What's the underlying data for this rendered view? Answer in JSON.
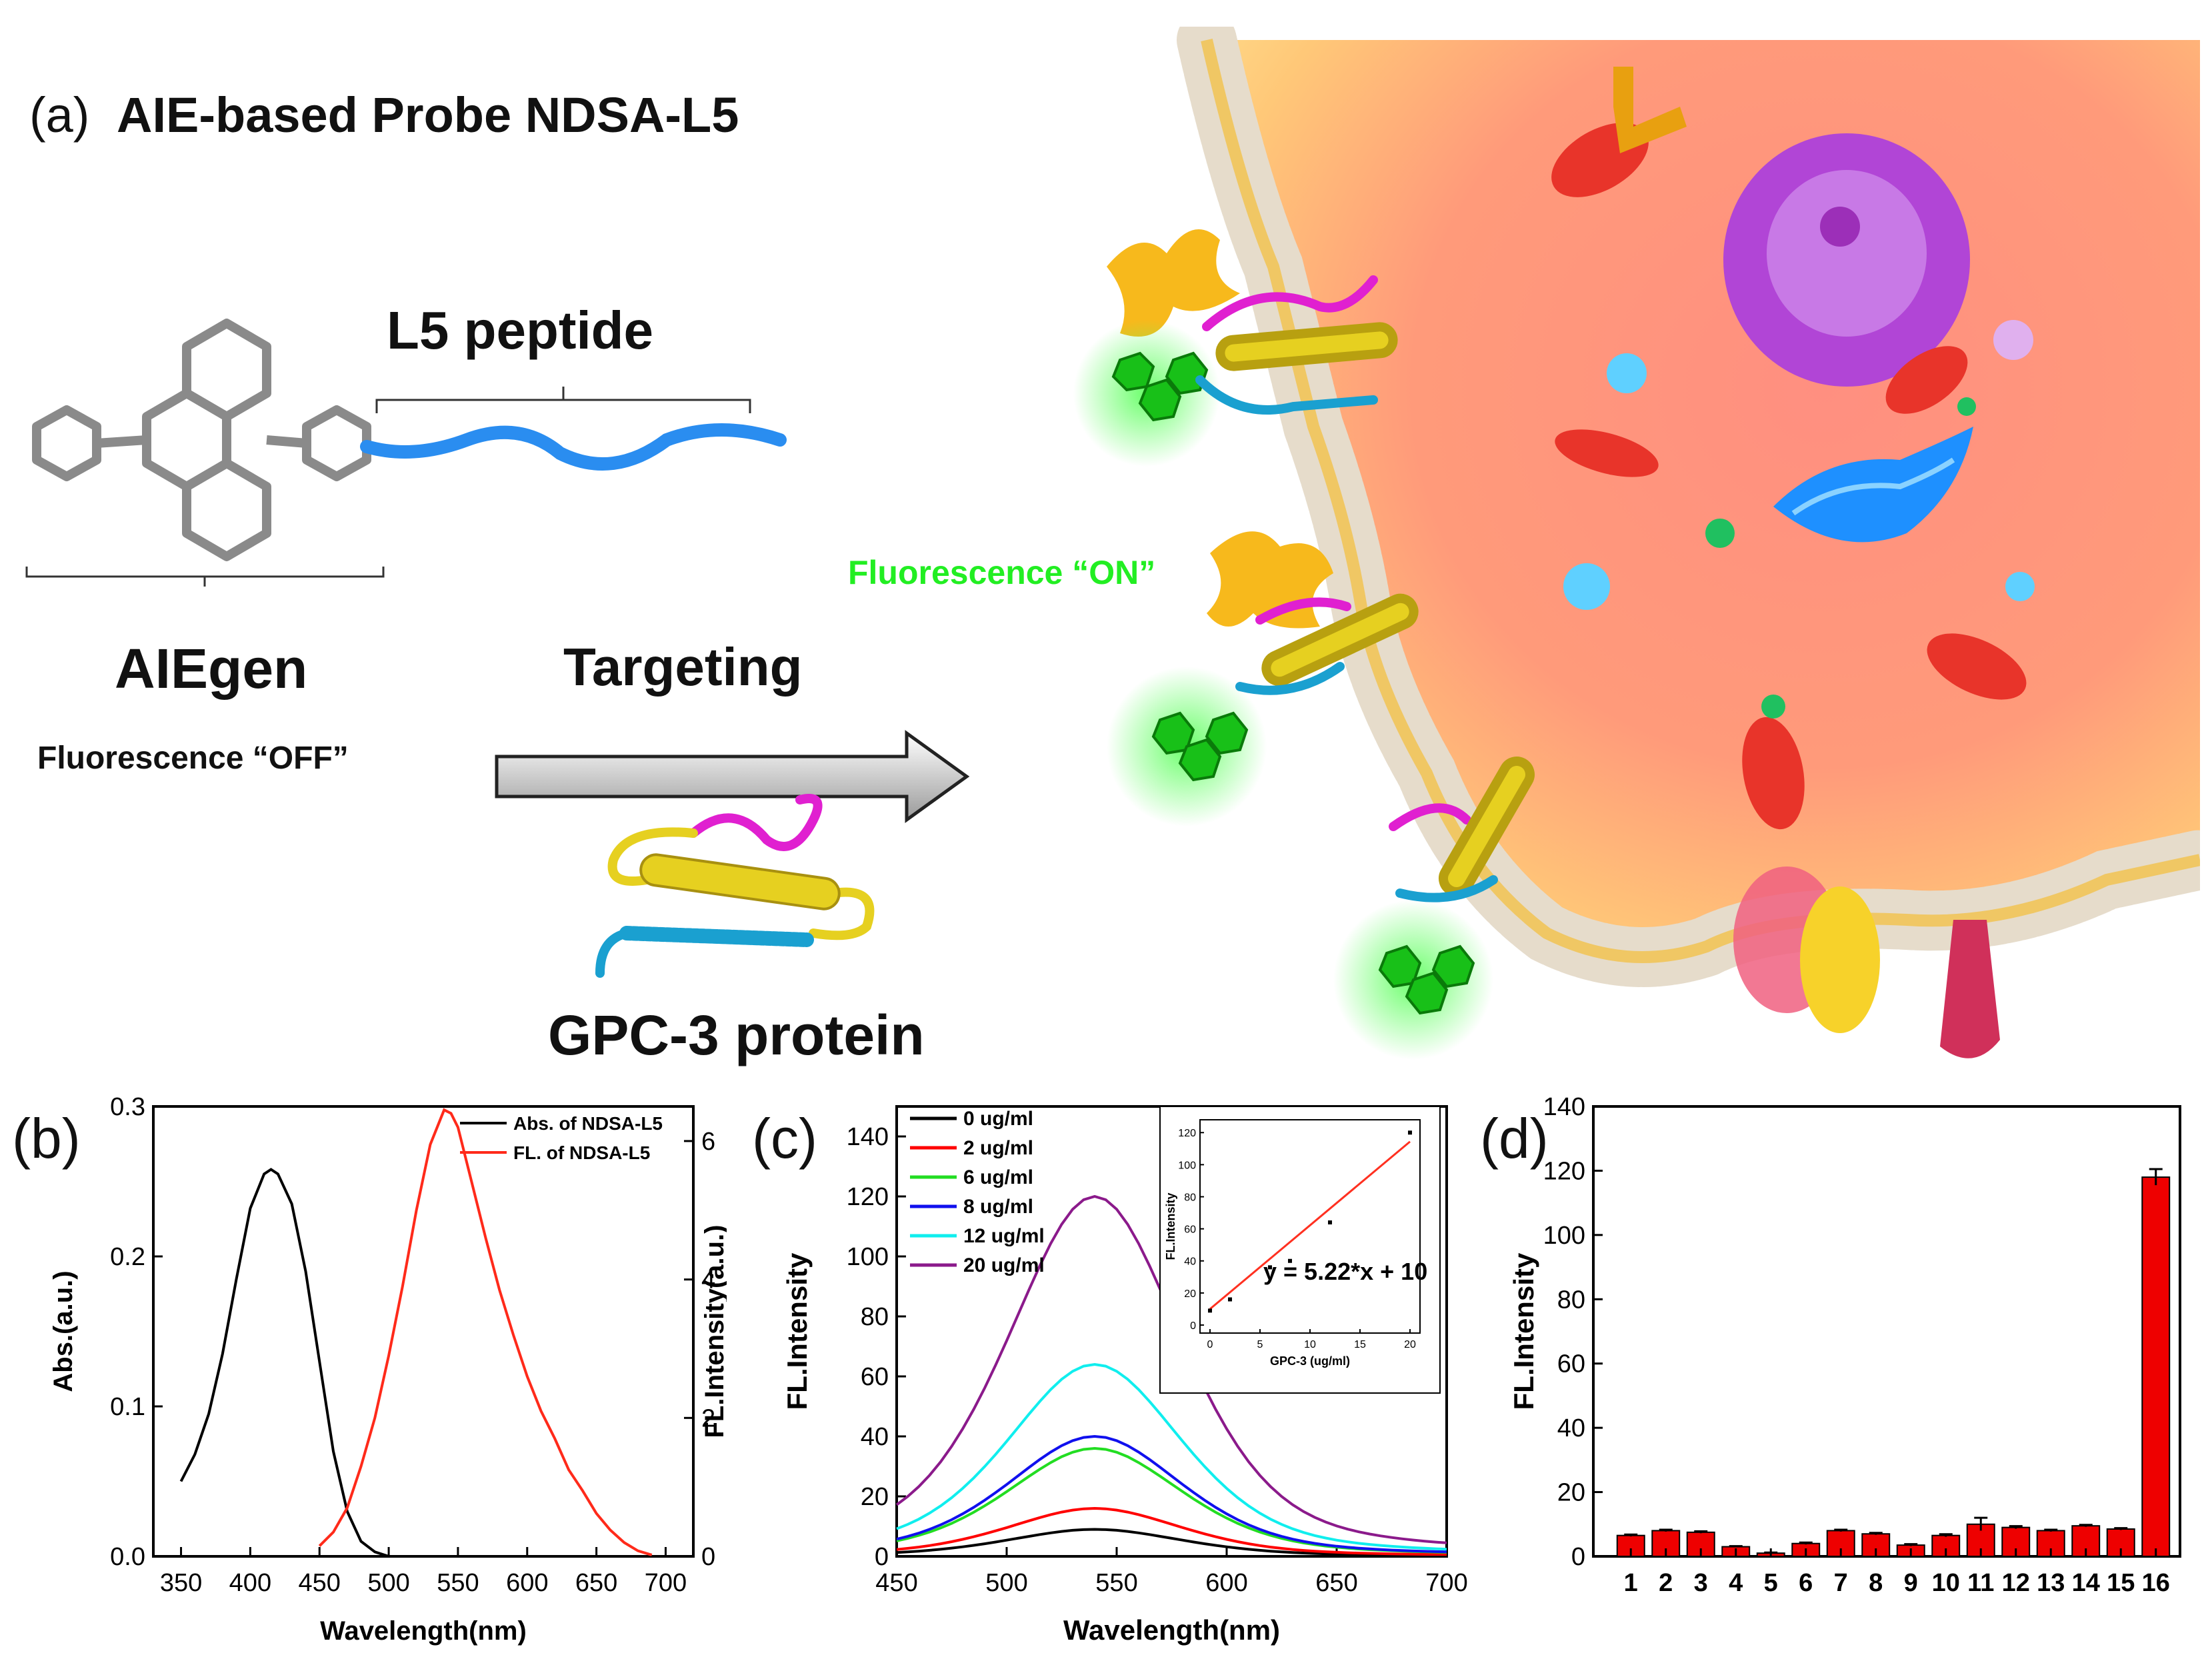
{
  "panel_a": {
    "label": "(a)",
    "title": "AIE-based Probe NDSA-L5",
    "peptide_label": "L5 peptide",
    "aiegen_label": "AIEgen",
    "fluor_off": "Fluorescence “OFF”",
    "targeting": "Targeting",
    "protein_label": "GPC-3 protein",
    "fluor_on": "Fluorescence “ON”"
  },
  "colors": {
    "abs": "#000000",
    "fl": "#ff2a1a",
    "s0": "#000000",
    "s2": "#ff0000",
    "s6": "#22dd22",
    "s8": "#1010ee",
    "s12": "#10eeee",
    "s20": "#8b1a8b",
    "bar": "#ee0000",
    "fluor_on": "#22ee22"
  },
  "chart_data": [
    {
      "panel": "(b)",
      "type": "line",
      "xlabel": "Wavelength(nm)",
      "ylabel": "Abs.(a.u.)",
      "y2label": "FL.Intensity(a.u.)",
      "xlim": [
        330,
        720
      ],
      "ylim": [
        0,
        0.3
      ],
      "y2lim": [
        0,
        6.5
      ],
      "xticks": [
        350,
        400,
        450,
        500,
        550,
        600,
        650,
        700
      ],
      "yticks": [
        0.0,
        0.1,
        0.2,
        0.3
      ],
      "ytick_labels": [
        "0.0",
        "0.1",
        "0.2",
        "0.3"
      ],
      "y2ticks": [
        0,
        2,
        4,
        6
      ],
      "legend": [
        "Abs. of NDSA-L5",
        "FL. of NDSA-L5"
      ],
      "series": [
        {
          "name": "Abs. of NDSA-L5",
          "axis": "left",
          "x": [
            350,
            360,
            370,
            380,
            390,
            400,
            410,
            415,
            420,
            430,
            440,
            450,
            460,
            470,
            480,
            490,
            500
          ],
          "y": [
            0.05,
            0.068,
            0.095,
            0.135,
            0.185,
            0.232,
            0.255,
            0.258,
            0.255,
            0.235,
            0.19,
            0.13,
            0.07,
            0.03,
            0.01,
            0.003,
            0.0
          ]
        },
        {
          "name": "FL. of NDSA-L5",
          "axis": "right",
          "x": [
            450,
            460,
            470,
            480,
            490,
            500,
            510,
            520,
            530,
            540,
            545,
            550,
            560,
            570,
            580,
            590,
            600,
            610,
            620,
            630,
            640,
            650,
            660,
            670,
            680,
            690
          ],
          "y": [
            0.15,
            0.35,
            0.7,
            1.3,
            2.0,
            2.9,
            3.9,
            5.0,
            5.95,
            6.45,
            6.4,
            6.2,
            5.4,
            4.6,
            3.85,
            3.2,
            2.6,
            2.1,
            1.7,
            1.25,
            0.95,
            0.62,
            0.38,
            0.2,
            0.08,
            0.02
          ]
        }
      ]
    },
    {
      "panel": "(c)",
      "type": "line",
      "xlabel": "Wavelength(nm)",
      "ylabel": "FL.Intensity",
      "xlim": [
        450,
        700
      ],
      "ylim": [
        0,
        150
      ],
      "xticks": [
        450,
        500,
        550,
        600,
        650,
        700
      ],
      "yticks": [
        0,
        20,
        40,
        60,
        80,
        100,
        120,
        140
      ],
      "peak_x": 540,
      "series": [
        {
          "name": "0 ug/ml",
          "peak": 9
        },
        {
          "name": "2 ug/ml",
          "peak": 16
        },
        {
          "name": "6 ug/ml",
          "peak": 36
        },
        {
          "name": "8 ug/ml",
          "peak": 40
        },
        {
          "name": "12 ug/ml",
          "peak": 64
        },
        {
          "name": "20 ug/ml",
          "peak": 120
        }
      ],
      "inset": {
        "type": "scatter",
        "xlabel": "GPC-3 (ug/ml)",
        "ylabel": "FL.Intensity",
        "xlim": [
          -1,
          21
        ],
        "ylim": [
          -5,
          128
        ],
        "xticks": [
          0,
          5,
          10,
          15,
          20
        ],
        "yticks": [
          0,
          20,
          40,
          60,
          80,
          100,
          120
        ],
        "points": {
          "x": [
            0,
            2,
            6,
            8,
            12,
            20
          ],
          "y": [
            9,
            16,
            36,
            40,
            64,
            120
          ]
        },
        "fit": {
          "slope": 5.22,
          "intercept": 10
        },
        "equation": "y = 5.22*x + 10"
      }
    },
    {
      "panel": "(d)",
      "type": "bar",
      "ylabel": "FL.Intensity",
      "ylim": [
        0,
        140
      ],
      "yticks": [
        0,
        20,
        40,
        60,
        80,
        100,
        120,
        140
      ],
      "categories": [
        "1",
        "2",
        "3",
        "4",
        "5",
        "6",
        "7",
        "8",
        "9",
        "10",
        "11",
        "12",
        "13",
        "14",
        "15",
        "16"
      ],
      "values": [
        6.5,
        8,
        7.5,
        3,
        1,
        4,
        8,
        7,
        3.5,
        6.5,
        10,
        9,
        8,
        9.5,
        8.5,
        118
      ],
      "errors": [
        0.3,
        0.3,
        0.3,
        0.2,
        0.2,
        0.3,
        0.3,
        0.3,
        0.3,
        0.4,
        2.0,
        0.4,
        0.3,
        0.3,
        0.3,
        2.5
      ]
    }
  ]
}
